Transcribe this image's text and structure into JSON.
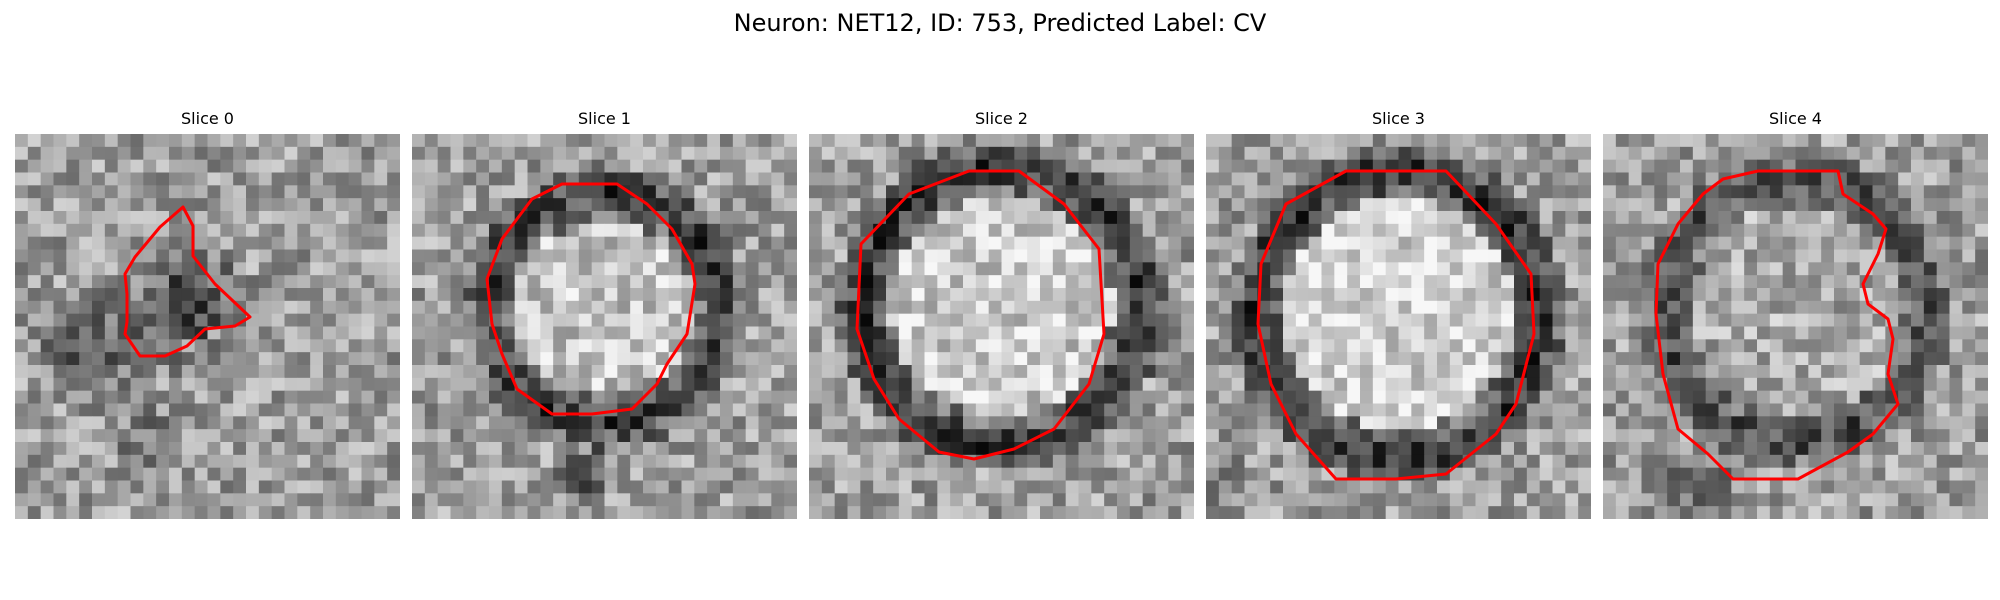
{
  "figure": {
    "title": "Neuron: NET12, ID: 753, Predicted Label: CV"
  },
  "panels": [
    {
      "title": "Slice 0",
      "contour_color": "#ff0000"
    },
    {
      "title": "Slice 1",
      "contour_color": "#ff0000"
    },
    {
      "title": "Slice 2",
      "contour_color": "#ff0000"
    },
    {
      "title": "Slice 3",
      "contour_color": "#ff0000"
    },
    {
      "title": "Slice 4",
      "contour_color": "#ff0000"
    }
  ]
}
